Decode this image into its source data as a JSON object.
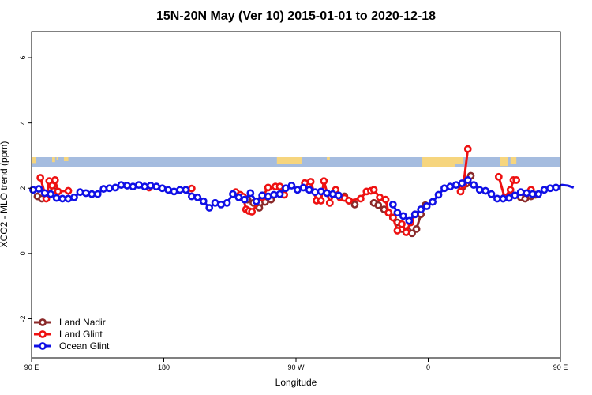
{
  "chart_data": {
    "type": "line",
    "title": "15N-20N May (Ver 10)   2015-01-01 to 2020-12-18",
    "xlabel": "Longitude",
    "ylabel": "XCO2 - MLO trend (ppm)",
    "xlim": [
      90,
      450
    ],
    "ylim": [
      -3.2,
      6.8
    ],
    "x_ticks": [
      {
        "value": 90,
        "label": "90 E"
      },
      {
        "value": 180,
        "label": "180"
      },
      {
        "value": 270,
        "label": "90 W"
      },
      {
        "value": 360,
        "label": "0"
      },
      {
        "value": 450,
        "label": "90 E"
      }
    ],
    "x_ticks_extra": [
      {
        "value": 540,
        "label": "180"
      }
    ],
    "y_ticks": [
      {
        "value": -2,
        "label": "-2"
      },
      {
        "value": 0,
        "label": "0"
      },
      {
        "value": 2,
        "label": "2"
      },
      {
        "value": 4,
        "label": "4"
      },
      {
        "value": 6,
        "label": "6"
      }
    ],
    "grid": false,
    "legend_position": "bottom-left",
    "land_band": {
      "ymin": 2.65,
      "ymax": 2.95,
      "ocean_color": "#a5bcdf",
      "land_color": "#f6d57e"
    },
    "series": [
      {
        "name": "Land Nadir",
        "color": "#8b2a2a",
        "points": [
          [
            94,
            1.75
          ],
          [
            97,
            1.68
          ],
          [
            100,
            1.74
          ],
          [
            103,
            1.85
          ],
          [
            105,
            1.92
          ],
          [
            233,
            1.72
          ],
          [
            237,
            1.65
          ],
          [
            241,
            1.55
          ],
          [
            245,
            1.4
          ],
          [
            249,
            1.58
          ],
          [
            253,
            1.65
          ],
          [
            303,
            1.75
          ],
          [
            306,
            1.62
          ],
          [
            310,
            1.5
          ],
          [
            323,
            1.55
          ],
          [
            326,
            1.48
          ],
          [
            330,
            1.35
          ],
          [
            333,
            1.25
          ],
          [
            336,
            1.1
          ],
          [
            339,
            0.95
          ],
          [
            342,
            0.75
          ],
          [
            346,
            0.7
          ],
          [
            349,
            0.62
          ],
          [
            352,
            0.75
          ],
          [
            355,
            1.2
          ],
          [
            358,
            1.48
          ],
          [
            383,
            2.02
          ],
          [
            386,
            2.14
          ],
          [
            389,
            2.38
          ],
          [
            423,
            1.72
          ],
          [
            426,
            1.68
          ],
          [
            430,
            1.75
          ],
          [
            433,
            1.8
          ]
        ]
      },
      {
        "name": "Land Glint",
        "color": "#ee1111",
        "points": [
          [
            96,
            2.32
          ],
          [
            100,
            1.68
          ],
          [
            102,
            2.22
          ],
          [
            104,
            2.08
          ],
          [
            106,
            2.25
          ],
          [
            108,
            1.9
          ],
          [
            115,
            1.92
          ],
          [
            170,
            2.02
          ],
          [
            199,
            1.99
          ],
          [
            229,
            1.88
          ],
          [
            232,
            1.8
          ],
          [
            234,
            1.74
          ],
          [
            236,
            1.35
          ],
          [
            238,
            1.3
          ],
          [
            240,
            1.28
          ],
          [
            247,
            1.72
          ],
          [
            251,
            2.02
          ],
          [
            256,
            2.05
          ],
          [
            259,
            2.05
          ],
          [
            262,
            1.8
          ],
          [
            276,
            2.16
          ],
          [
            280,
            2.2
          ],
          [
            284,
            1.62
          ],
          [
            287,
            1.62
          ],
          [
            289,
            2.22
          ],
          [
            293,
            1.55
          ],
          [
            297,
            1.95
          ],
          [
            300,
            1.72
          ],
          [
            303,
            1.7
          ],
          [
            306,
            1.62
          ],
          [
            314,
            1.68
          ],
          [
            318,
            1.9
          ],
          [
            321,
            1.92
          ],
          [
            323,
            1.95
          ],
          [
            327,
            1.72
          ],
          [
            331,
            1.65
          ],
          [
            333,
            1.25
          ],
          [
            336,
            1.1
          ],
          [
            339,
            0.7
          ],
          [
            342,
            0.9
          ],
          [
            345,
            0.65
          ],
          [
            348,
            0.95
          ],
          [
            351,
            1.2
          ],
          [
            382,
            1.9
          ],
          [
            384,
            2.1
          ],
          [
            387,
            3.2
          ],
          [
            408,
            2.35
          ],
          [
            412,
            1.72
          ],
          [
            416,
            1.95
          ],
          [
            418,
            2.25
          ],
          [
            420,
            2.25
          ],
          [
            430,
            1.95
          ]
        ]
      },
      {
        "name": "Ocean Glint",
        "color": "#1010e6",
        "points": [
          [
            91,
            1.95
          ],
          [
            95,
            1.98
          ],
          [
            99,
            1.85
          ],
          [
            103,
            1.82
          ],
          [
            107,
            1.7
          ],
          [
            111,
            1.68
          ],
          [
            115,
            1.68
          ],
          [
            119,
            1.72
          ],
          [
            123,
            1.88
          ],
          [
            127,
            1.85
          ],
          [
            131,
            1.82
          ],
          [
            135,
            1.82
          ],
          [
            139,
            1.98
          ],
          [
            143,
            2.0
          ],
          [
            147,
            2.02
          ],
          [
            151,
            2.1
          ],
          [
            155,
            2.08
          ],
          [
            159,
            2.05
          ],
          [
            163,
            2.1
          ],
          [
            167,
            2.05
          ],
          [
            171,
            2.08
          ],
          [
            175,
            2.05
          ],
          [
            179,
            2.0
          ],
          [
            183,
            1.95
          ],
          [
            187,
            1.9
          ],
          [
            191,
            1.95
          ],
          [
            195,
            1.95
          ],
          [
            199,
            1.75
          ],
          [
            203,
            1.72
          ],
          [
            207,
            1.6
          ],
          [
            211,
            1.4
          ],
          [
            215,
            1.55
          ],
          [
            219,
            1.5
          ],
          [
            223,
            1.55
          ],
          [
            227,
            1.82
          ],
          [
            231,
            1.72
          ],
          [
            235,
            1.65
          ],
          [
            239,
            1.85
          ],
          [
            243,
            1.6
          ],
          [
            247,
            1.78
          ],
          [
            251,
            1.75
          ],
          [
            255,
            1.8
          ],
          [
            259,
            1.82
          ],
          [
            263,
            2.0
          ],
          [
            267,
            2.08
          ],
          [
            271,
            1.95
          ],
          [
            275,
            2.02
          ],
          [
            279,
            1.95
          ],
          [
            283,
            1.88
          ],
          [
            287,
            1.9
          ],
          [
            291,
            1.85
          ],
          [
            295,
            1.82
          ],
          [
            299,
            1.78
          ],
          [
            336,
            1.5
          ],
          [
            339,
            1.25
          ],
          [
            343,
            1.15
          ],
          [
            347,
            1.0
          ],
          [
            351,
            1.2
          ],
          [
            355,
            1.35
          ],
          [
            359,
            1.45
          ],
          [
            363,
            1.58
          ],
          [
            367,
            1.8
          ],
          [
            371,
            2.0
          ],
          [
            375,
            2.05
          ],
          [
            379,
            2.1
          ],
          [
            383,
            2.15
          ],
          [
            387,
            2.25
          ],
          [
            391,
            2.1
          ],
          [
            395,
            1.95
          ],
          [
            399,
            1.92
          ],
          [
            403,
            1.82
          ],
          [
            407,
            1.68
          ],
          [
            411,
            1.68
          ],
          [
            415,
            1.7
          ],
          [
            419,
            1.78
          ],
          [
            423,
            1.88
          ],
          [
            427,
            1.85
          ],
          [
            431,
            1.82
          ],
          [
            435,
            1.82
          ],
          [
            439,
            1.95
          ],
          [
            443,
            2.0
          ],
          [
            447,
            2.02
          ],
          [
            451,
            2.1
          ],
          [
            455,
            2.08
          ],
          [
            459,
            2.02
          ]
        ]
      }
    ]
  }
}
